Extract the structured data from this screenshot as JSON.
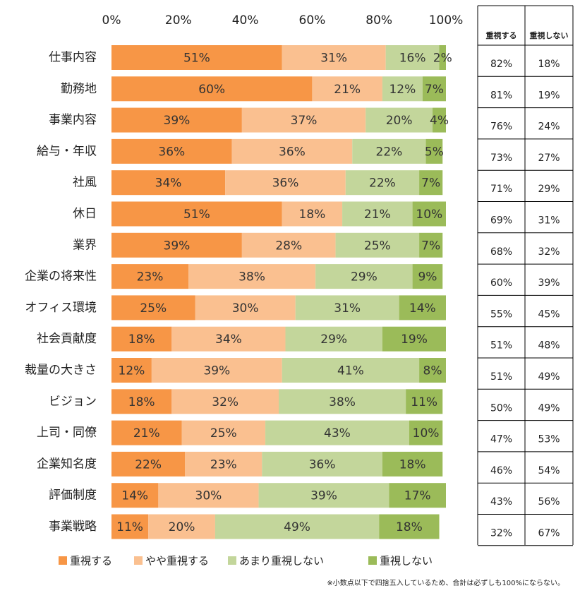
{
  "chart_data": {
    "type": "bar",
    "orientation": "horizontal",
    "stacked": true,
    "x_tick_labels": [
      "0%",
      "20%",
      "40%",
      "60%",
      "80%",
      "100%"
    ],
    "xlim": [
      0,
      100
    ],
    "categories": [
      "仕事内容",
      "勤務地",
      "事業内容",
      "給与・年収",
      "社風",
      "休日",
      "業界",
      "企業の将来性",
      "オフィス環境",
      "社会貢献度",
      "裁量の大きさ",
      "ビジョン",
      "上司・同僚",
      "企業知名度",
      "評価制度",
      "事業戦略"
    ],
    "series": [
      {
        "name": "重視する",
        "color": "#F79646",
        "values": [
          51,
          60,
          39,
          36,
          34,
          51,
          39,
          23,
          25,
          18,
          12,
          18,
          21,
          22,
          14,
          11
        ]
      },
      {
        "name": "やや重視する",
        "color": "#FAC090",
        "values": [
          31,
          21,
          37,
          36,
          36,
          18,
          28,
          38,
          30,
          34,
          39,
          32,
          25,
          23,
          30,
          20
        ]
      },
      {
        "name": "あまり重視しない",
        "color": "#C3D69B",
        "values": [
          16,
          12,
          20,
          22,
          22,
          21,
          25,
          29,
          31,
          29,
          41,
          38,
          43,
          36,
          39,
          49
        ]
      },
      {
        "name": "重視しない",
        "color": "#9BBB59",
        "values": [
          2,
          7,
          4,
          5,
          7,
          10,
          7,
          9,
          14,
          19,
          8,
          11,
          10,
          18,
          17,
          18
        ]
      }
    ],
    "legend_position": "bottom",
    "side_table": {
      "headers": [
        "重視する",
        "重視しない"
      ],
      "rows": [
        [
          "82%",
          "18%"
        ],
        [
          "81%",
          "19%"
        ],
        [
          "76%",
          "24%"
        ],
        [
          "73%",
          "27%"
        ],
        [
          "71%",
          "29%"
        ],
        [
          "69%",
          "31%"
        ],
        [
          "68%",
          "32%"
        ],
        [
          "60%",
          "39%"
        ],
        [
          "55%",
          "45%"
        ],
        [
          "51%",
          "48%"
        ],
        [
          "51%",
          "49%"
        ],
        [
          "50%",
          "49%"
        ],
        [
          "47%",
          "53%"
        ],
        [
          "46%",
          "54%"
        ],
        [
          "43%",
          "56%"
        ],
        [
          "32%",
          "67%"
        ]
      ]
    },
    "footnote": "※小数点以下で四捨五入しているため、合計は必ずしも100%にならない。"
  }
}
